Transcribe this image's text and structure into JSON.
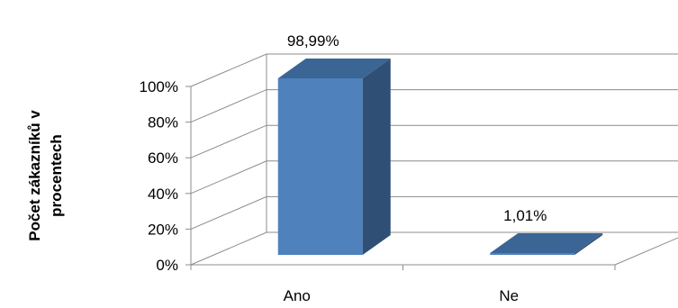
{
  "chart_data": {
    "type": "bar",
    "categories": [
      "Ano",
      "Ne"
    ],
    "values": [
      98.99,
      1.01
    ],
    "data_labels": [
      "98,99%",
      "1,01%"
    ],
    "ylabel_lines": [
      "Počet zákazníků v",
      "procentech"
    ],
    "yticks": [
      "0%",
      "20%",
      "40%",
      "60%",
      "80%",
      "100%"
    ],
    "ylim": [
      0,
      100
    ],
    "grid": true,
    "legend": "none",
    "colors": {
      "front": "#4f81bd",
      "top": "#3a6595",
      "side": "#2f4f75"
    }
  }
}
